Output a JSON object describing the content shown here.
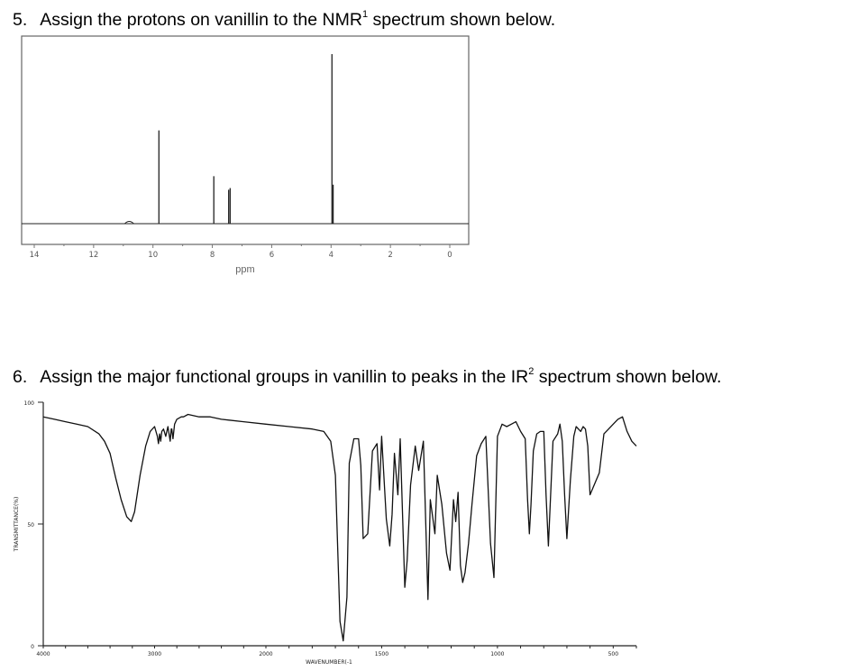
{
  "questions": {
    "q5": {
      "number": "5.",
      "text_before": "Assign the protons on vanillin to the NMR",
      "sup": "1",
      "text_after": " spectrum shown below."
    },
    "q6": {
      "number": "6.",
      "text_before": "Assign the major functional groups in vanillin to peaks in the IR",
      "sup": "2",
      "text_after": " spectrum shown below."
    }
  },
  "chart_data": [
    {
      "type": "line",
      "title": "",
      "xlabel": "ppm",
      "ylabel": "",
      "xlim": [
        14,
        0
      ],
      "x_ticks": [
        "14",
        "12",
        "10",
        "8",
        "6",
        "4",
        "2",
        "0"
      ],
      "peaks": [
        {
          "x": 10.8,
          "height": 0.01
        },
        {
          "x": 9.8,
          "height": 0.55
        },
        {
          "x": 7.95,
          "height": 0.28
        },
        {
          "x": 7.45,
          "height": 0.2
        },
        {
          "x": 7.4,
          "height": 0.21
        },
        {
          "x": 3.97,
          "height": 1.0
        },
        {
          "x": 3.93,
          "height": 0.23
        }
      ],
      "grid": false,
      "colors": {
        "trace": "#222222",
        "frame": "#666666"
      }
    },
    {
      "type": "line",
      "title": "",
      "xlabel": "WAVENUMBER(-1",
      "ylabel": "TRANSMITTANCE(%)",
      "xlim": [
        4000,
        400
      ],
      "ylim": [
        0,
        100
      ],
      "x_ticks": [
        "4000",
        "3000",
        "2000",
        "1500",
        "1000",
        "500"
      ],
      "y_ticks": [
        "100",
        "50",
        "0"
      ],
      "x": [
        4000,
        3900,
        3800,
        3700,
        3600,
        3500,
        3450,
        3400,
        3350,
        3300,
        3250,
        3210,
        3180,
        3130,
        3080,
        3040,
        3000,
        2975,
        2965,
        2955,
        2945,
        2935,
        2920,
        2900,
        2880,
        2860,
        2850,
        2845,
        2835,
        2820,
        2800,
        2760,
        2740,
        2700,
        2600,
        2500,
        2400,
        2200,
        2000,
        1900,
        1800,
        1750,
        1720,
        1700,
        1680,
        1666,
        1650,
        1640,
        1620,
        1600,
        1590,
        1580,
        1560,
        1540,
        1520,
        1509,
        1500,
        1480,
        1465,
        1455,
        1445,
        1430,
        1420,
        1400,
        1390,
        1375,
        1355,
        1340,
        1320,
        1300,
        1290,
        1270,
        1260,
        1240,
        1220,
        1205,
        1190,
        1180,
        1170,
        1160,
        1150,
        1140,
        1125,
        1110,
        1090,
        1070,
        1050,
        1030,
        1015,
        1000,
        980,
        960,
        940,
        920,
        900,
        880,
        870,
        862,
        855,
        845,
        830,
        815,
        800,
        790,
        780,
        760,
        740,
        730,
        720,
        710,
        700,
        685,
        670,
        660,
        640,
        630,
        620,
        610,
        600,
        560,
        540,
        520,
        500,
        480,
        460,
        440,
        420,
        400
      ],
      "y": [
        94,
        93,
        92,
        91,
        90,
        87,
        84,
        79,
        69,
        60,
        53,
        51,
        55,
        70,
        82,
        88,
        90,
        86,
        83,
        87,
        84,
        88,
        89,
        86,
        90,
        84,
        89,
        89,
        85,
        91,
        93,
        94,
        94,
        95,
        94,
        94,
        93,
        92,
        91,
        90,
        89,
        88,
        84,
        70,
        10,
        2,
        20,
        75,
        85,
        85,
        74,
        44,
        46,
        80,
        83,
        64,
        86,
        52,
        41,
        54,
        79,
        62,
        85,
        24,
        35,
        66,
        82,
        72,
        84,
        19,
        60,
        46,
        70,
        58,
        38,
        31,
        60,
        51,
        63,
        33,
        26,
        30,
        42,
        58,
        78,
        83,
        86,
        42,
        28,
        86,
        91,
        90,
        91,
        92,
        88,
        85,
        60,
        46,
        58,
        80,
        87,
        88,
        88,
        62,
        41,
        84,
        87,
        91,
        84,
        62,
        44,
        68,
        86,
        90,
        88,
        90,
        89,
        82,
        62,
        71,
        87,
        89,
        91,
        93,
        94,
        88,
        84,
        82
      ]
    }
  ]
}
